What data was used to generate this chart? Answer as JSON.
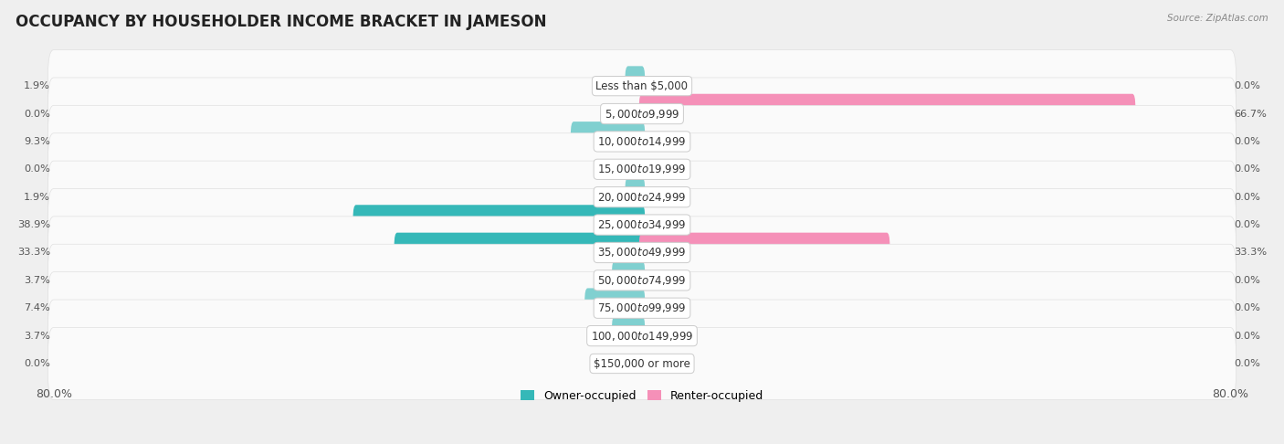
{
  "title": "OCCUPANCY BY HOUSEHOLDER INCOME BRACKET IN JAMESON",
  "source": "Source: ZipAtlas.com",
  "categories": [
    "Less than $5,000",
    "$5,000 to $9,999",
    "$10,000 to $14,999",
    "$15,000 to $19,999",
    "$20,000 to $24,999",
    "$25,000 to $34,999",
    "$35,000 to $49,999",
    "$50,000 to $74,999",
    "$75,000 to $99,999",
    "$100,000 to $149,999",
    "$150,000 or more"
  ],
  "owner_values": [
    1.9,
    0.0,
    9.3,
    0.0,
    1.9,
    38.9,
    33.3,
    3.7,
    7.4,
    3.7,
    0.0
  ],
  "renter_values": [
    0.0,
    66.7,
    0.0,
    0.0,
    0.0,
    0.0,
    33.3,
    0.0,
    0.0,
    0.0,
    0.0
  ],
  "owner_color_dark": "#35b8b8",
  "owner_color_light": "#80d0d0",
  "renter_color": "#f590b8",
  "axis_limit": 80.0,
  "background_color": "#efefef",
  "bar_bg_color": "#fafafa",
  "bar_bg_edge": "#e0e0e0",
  "label_fontsize": 8.5,
  "title_fontsize": 12,
  "legend_owner": "Owner-occupied",
  "legend_renter": "Renter-occupied"
}
